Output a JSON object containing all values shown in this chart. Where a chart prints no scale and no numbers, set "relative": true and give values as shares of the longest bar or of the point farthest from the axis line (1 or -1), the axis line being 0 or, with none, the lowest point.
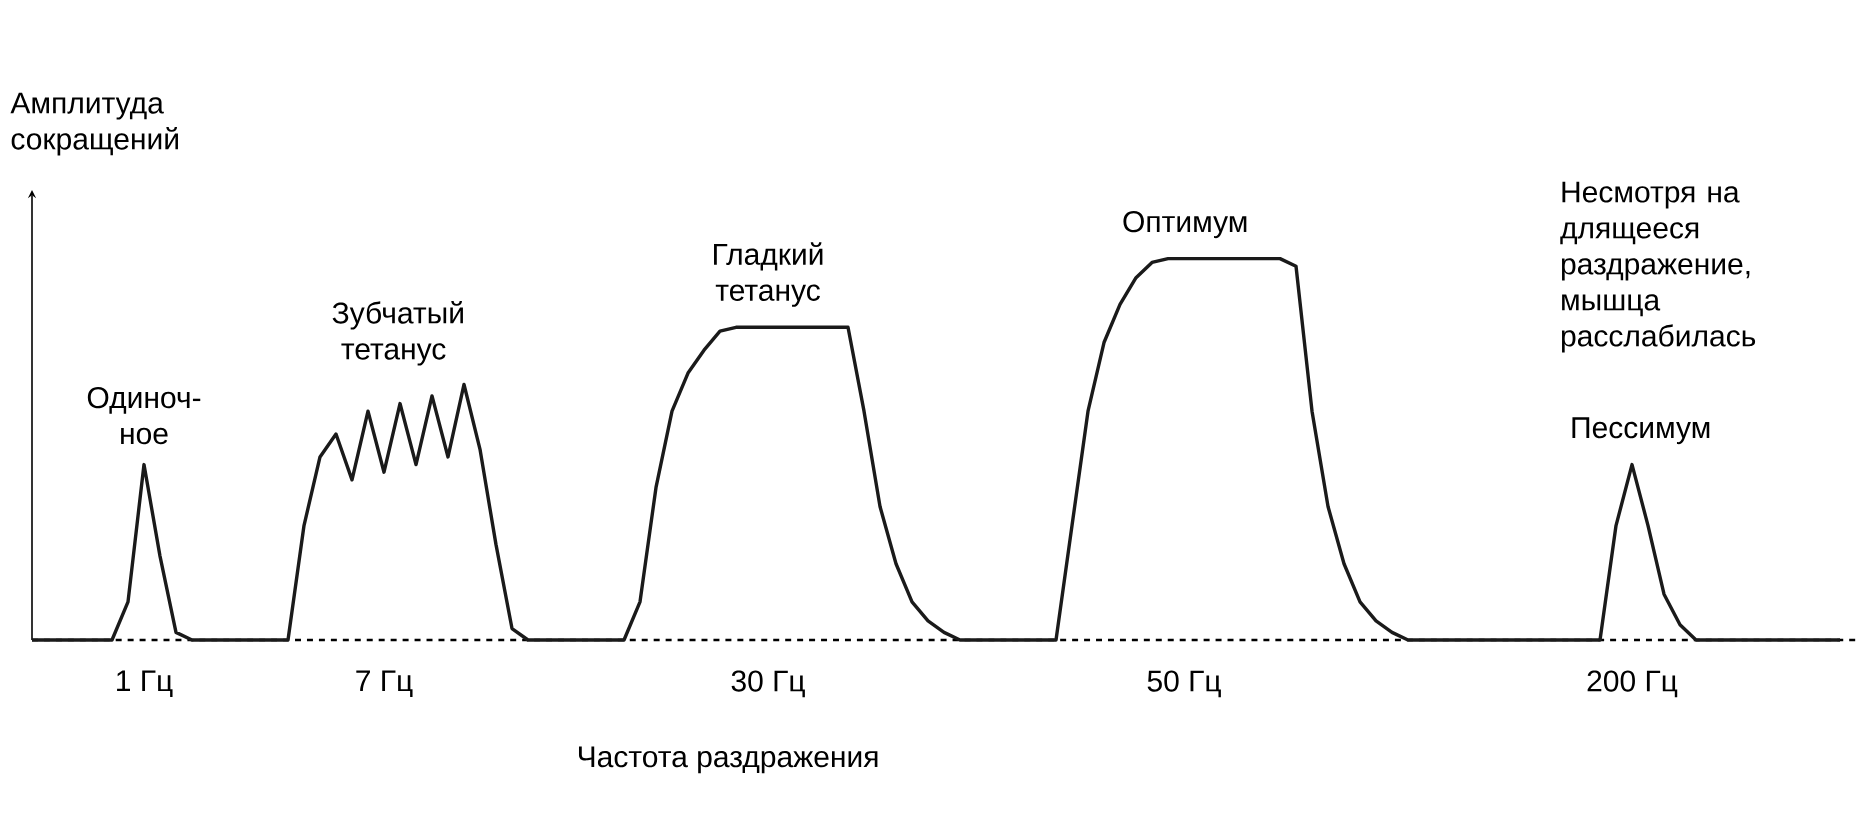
{
  "chart_data": {
    "type": "line",
    "relative": true,
    "color": "#1a1a1a",
    "xlabel": "Частота раздражения",
    "ylabel": "Амплитуда сокращений",
    "categories": [
      null,
      null,
      null,
      null,
      null,
      null,
      null,
      "1 Гц",
      null,
      null,
      null,
      null,
      null,
      null,
      null,
      null,
      null,
      null,
      null,
      null,
      null,
      null,
      "7 Гц",
      null,
      null,
      null,
      null,
      null,
      null,
      null,
      null,
      null,
      null,
      null,
      null,
      null,
      null,
      null,
      null,
      null,
      null,
      null,
      null,
      null,
      null,
      null,
      "30 Гц",
      null,
      null,
      null,
      null,
      null,
      null,
      null,
      null,
      null,
      null,
      null,
      null,
      null,
      null,
      null,
      null,
      null,
      null,
      null,
      null,
      null,
      null,
      null,
      null,
      null,
      "50 Гц",
      null,
      null,
      null,
      null,
      null,
      null,
      null,
      null,
      null,
      null,
      null,
      null,
      null,
      null,
      null,
      null,
      null,
      null,
      null,
      null,
      null,
      null,
      null,
      null,
      null,
      null,
      null,
      "200 Гц",
      null,
      null,
      null,
      null,
      null,
      null,
      null,
      null,
      null,
      null,
      null,
      null,
      null
    ],
    "values": [
      0,
      0,
      0,
      0,
      0,
      0,
      0.1,
      0.46,
      0.22,
      0.02,
      0,
      0,
      0,
      0,
      0,
      0,
      0,
      0.3,
      0.48,
      0.54,
      0.42,
      0.6,
      0.44,
      0.62,
      0.46,
      0.64,
      0.48,
      0.67,
      0.5,
      0.25,
      0.03,
      0,
      0,
      0,
      0,
      0,
      0,
      0,
      0.1,
      0.4,
      0.6,
      0.7,
      0.76,
      0.81,
      0.82,
      0.82,
      0.82,
      0.82,
      0.82,
      0.82,
      0.82,
      0.82,
      0.6,
      0.35,
      0.2,
      0.1,
      0.05,
      0.02,
      0,
      0,
      0,
      0,
      0,
      0,
      0,
      0.3,
      0.6,
      0.78,
      0.88,
      0.95,
      0.99,
      1,
      1,
      1,
      1,
      1,
      1,
      1,
      1,
      0.98,
      0.6,
      0.35,
      0.2,
      0.1,
      0.05,
      0.02,
      0,
      0,
      0,
      0,
      0,
      0,
      0,
      0,
      0,
      0,
      0,
      0,
      0,
      0.3,
      0.46,
      0.3,
      0.12,
      0.04,
      0,
      0,
      0,
      0,
      0,
      0,
      0,
      0,
      0,
      0
    ],
    "annotations": [
      {
        "text": "Одиноч-ное",
        "x": "1 Гц",
        "y": 0.46
      },
      "Зубчатый тетанус",
      {
        "text": "Гладкий тетанус",
        "x": "30 Гц",
        "y": 0.82
      },
      {
        "text": "Оптимум",
        "x": "50 Гц",
        "y": 1
      },
      {
        "text": "Пессимум",
        "x": "200 Гц",
        "y": 0.46
      },
      "Несмотря на длящееся раздражение, мышца расслабилась"
    ]
  }
}
